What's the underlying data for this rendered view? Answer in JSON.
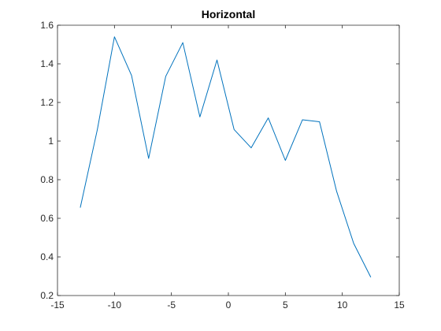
{
  "chart_data": {
    "type": "line",
    "title": "Horizontal",
    "xlabel": "",
    "ylabel": "",
    "xlim": [
      -15,
      15
    ],
    "ylim": [
      0.2,
      1.6
    ],
    "xticks": [
      -15,
      -10,
      -5,
      0,
      5,
      10,
      15
    ],
    "yticks": [
      0.2,
      0.4,
      0.6,
      0.8,
      1,
      1.2,
      1.4,
      1.6
    ],
    "grid": false,
    "series": [
      {
        "color": "#0072BD",
        "x": [
          -13,
          -11.5,
          -10,
          -8.5,
          -7,
          -5.5,
          -4,
          -2.5,
          -1,
          0.5,
          2,
          3.5,
          5,
          6.5,
          8,
          9.5,
          11,
          12.5
        ],
        "y": [
          0.655,
          1.06,
          1.54,
          1.34,
          0.91,
          1.335,
          1.51,
          1.125,
          1.42,
          1.06,
          0.965,
          1.12,
          0.9,
          1.11,
          1.1,
          0.74,
          0.47,
          0.295
        ]
      }
    ]
  }
}
